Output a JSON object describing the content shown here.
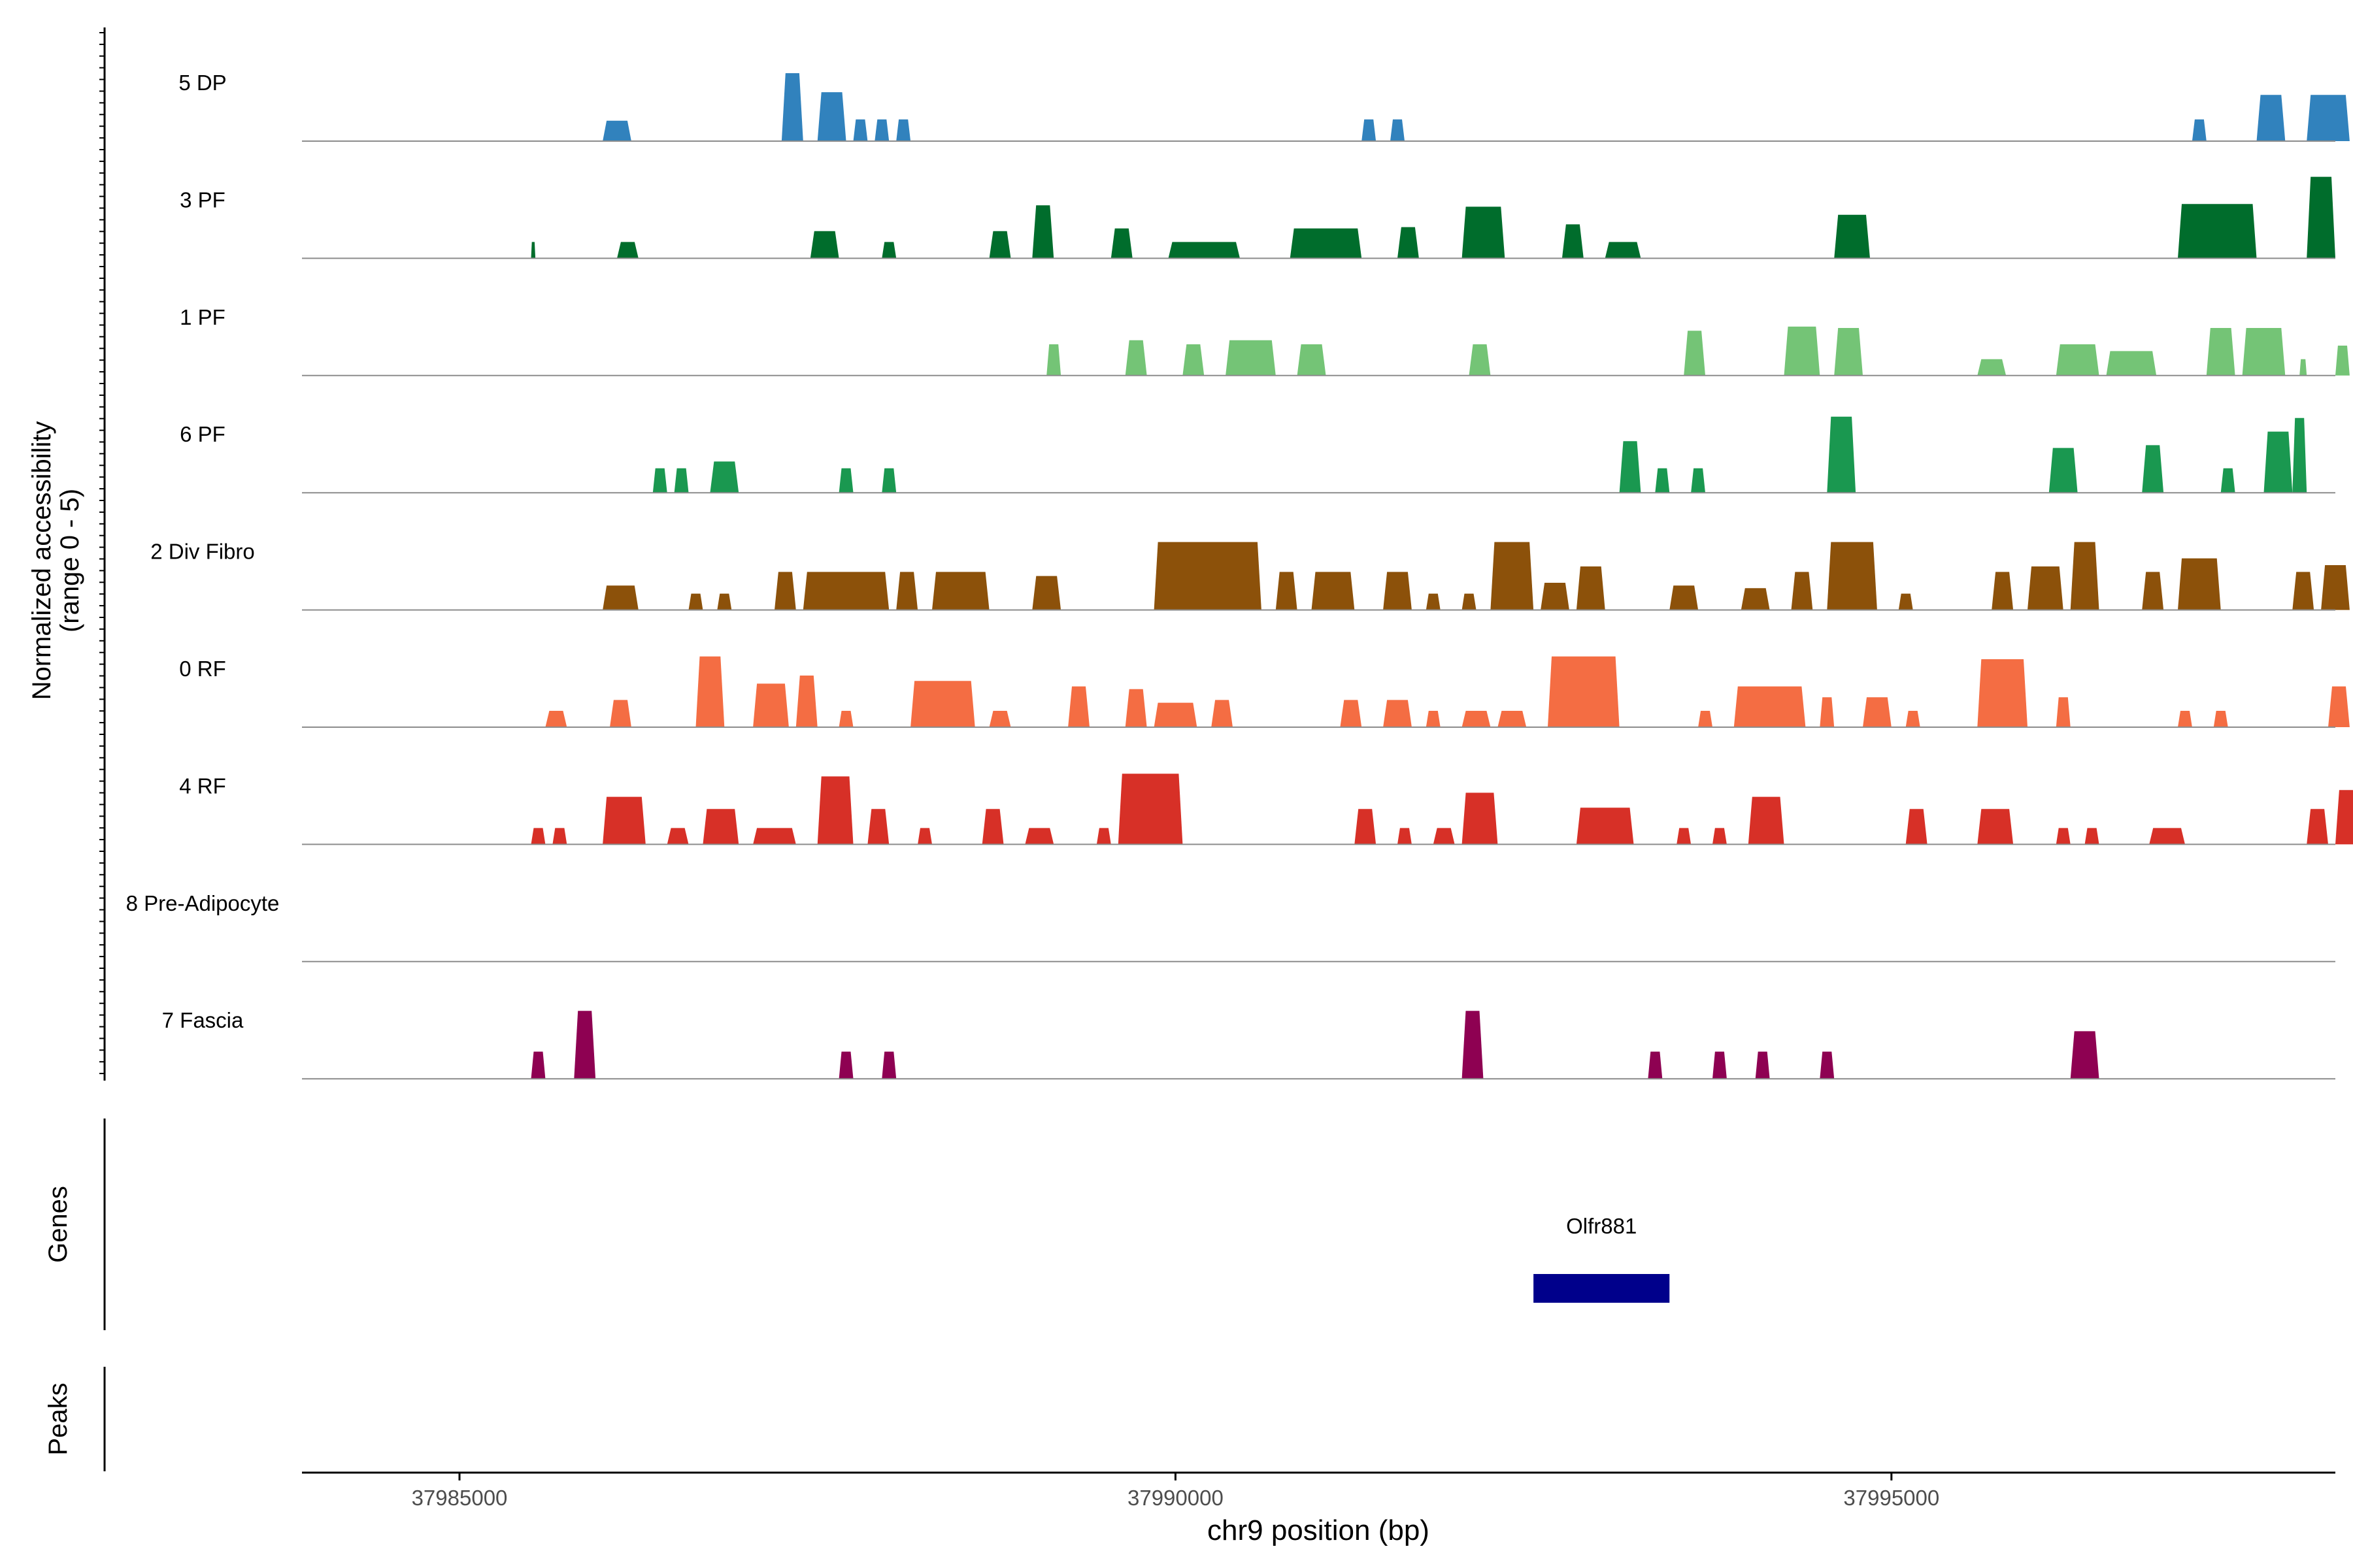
{
  "chart_data": {
    "type": "area",
    "title": "",
    "xlabel": "chr9 position (bp)",
    "ylabel_line1": "Normalized accessibility",
    "ylabel_line2": "(range 0 - 5)",
    "xlim": [
      37983900,
      37998100
    ],
    "ylim": [
      0,
      5
    ],
    "x_ticks": [
      37985000,
      37990000,
      37995000
    ],
    "x_tick_labels": [
      "37985000",
      "37990000",
      "37995000"
    ],
    "series": [
      {
        "name": "5 DP",
        "color": "#3182bd",
        "peaks": [
          [
            37986000,
            37986200,
            1.5
          ],
          [
            37987250,
            37987400,
            5.0
          ],
          [
            37987500,
            37987700,
            3.6
          ],
          [
            37987750,
            37987850,
            1.6
          ],
          [
            37987900,
            37988000,
            1.6
          ],
          [
            37988050,
            37988150,
            1.6
          ],
          [
            37991300,
            37991400,
            1.6
          ],
          [
            37991500,
            37991600,
            1.6
          ],
          [
            37997100,
            37997200,
            1.6
          ],
          [
            37997550,
            37997750,
            3.4
          ],
          [
            37997900,
            37998200,
            3.4
          ]
        ]
      },
      {
        "name": "3 PF",
        "color": "#006d2c",
        "peaks": [
          [
            37985500,
            37985530,
            1.2
          ],
          [
            37986100,
            37986250,
            1.2
          ],
          [
            37987450,
            37987650,
            2.0
          ],
          [
            37987950,
            37988050,
            1.2
          ],
          [
            37988700,
            37988850,
            2.0
          ],
          [
            37989000,
            37989150,
            3.9
          ],
          [
            37989550,
            37989700,
            2.2
          ],
          [
            37989950,
            37990450,
            1.2
          ],
          [
            37990800,
            37991300,
            2.2
          ],
          [
            37991550,
            37991700,
            2.3
          ],
          [
            37992000,
            37992300,
            3.8
          ],
          [
            37992700,
            37992850,
            2.5
          ],
          [
            37993000,
            37993250,
            1.2
          ],
          [
            37994600,
            37994850,
            3.2
          ],
          [
            37997000,
            37997550,
            4.0
          ],
          [
            37997900,
            37998100,
            6.0
          ]
        ]
      },
      {
        "name": "1 PF",
        "color": "#74c476",
        "peaks": [
          [
            37989100,
            37989200,
            2.3
          ],
          [
            37989650,
            37989800,
            2.6
          ],
          [
            37990050,
            37990200,
            2.3
          ],
          [
            37990350,
            37990700,
            2.6
          ],
          [
            37990850,
            37991050,
            2.3
          ],
          [
            37992050,
            37992200,
            2.3
          ],
          [
            37993550,
            37993700,
            3.3
          ],
          [
            37994250,
            37994500,
            3.6
          ],
          [
            37994600,
            37994800,
            3.5
          ],
          [
            37995600,
            37995800,
            1.2
          ],
          [
            37996150,
            37996450,
            2.3
          ],
          [
            37996500,
            37996850,
            1.8
          ],
          [
            37997200,
            37997400,
            3.5
          ],
          [
            37997450,
            37997750,
            3.5
          ],
          [
            37997850,
            37997900,
            1.2
          ],
          [
            37998100,
            37998200,
            2.2
          ]
        ]
      },
      {
        "name": "6 PF",
        "color": "#1a9850",
        "peaks": [
          [
            37986350,
            37986450,
            1.8
          ],
          [
            37986500,
            37986600,
            1.8
          ],
          [
            37986750,
            37986950,
            2.3
          ],
          [
            37987650,
            37987750,
            1.8
          ],
          [
            37987950,
            37988050,
            1.8
          ],
          [
            37993100,
            37993250,
            3.8
          ],
          [
            37993350,
            37993450,
            1.8
          ],
          [
            37993600,
            37993700,
            1.8
          ],
          [
            37994550,
            37994750,
            5.6
          ],
          [
            37996100,
            37996300,
            3.3
          ],
          [
            37996750,
            37996900,
            3.5
          ],
          [
            37997300,
            37997400,
            1.8
          ],
          [
            37997600,
            37997800,
            4.5
          ],
          [
            37997800,
            37997900,
            5.5
          ]
        ]
      },
      {
        "name": "2 Div Fibro",
        "color": "#8c510a",
        "peaks": [
          [
            37986000,
            37986250,
            1.8
          ],
          [
            37986600,
            37986700,
            1.2
          ],
          [
            37986800,
            37986900,
            1.2
          ],
          [
            37987200,
            37987350,
            2.8
          ],
          [
            37987400,
            37988000,
            2.8
          ],
          [
            37988050,
            37988200,
            2.8
          ],
          [
            37988300,
            37988700,
            2.8
          ],
          [
            37989000,
            37989200,
            2.5
          ],
          [
            37989850,
            37990600,
            5.0
          ],
          [
            37990700,
            37990850,
            2.8
          ],
          [
            37990950,
            37991250,
            2.8
          ],
          [
            37991450,
            37991650,
            2.8
          ],
          [
            37991750,
            37991850,
            1.2
          ],
          [
            37992000,
            37992100,
            1.2
          ],
          [
            37992200,
            37992500,
            5.0
          ],
          [
            37992550,
            37992750,
            2.0
          ],
          [
            37992800,
            37993000,
            3.2
          ],
          [
            37993450,
            37993650,
            1.8
          ],
          [
            37993950,
            37994150,
            1.6
          ],
          [
            37994300,
            37994450,
            2.8
          ],
          [
            37994550,
            37994900,
            5.0
          ],
          [
            37995050,
            37995150,
            1.2
          ],
          [
            37995700,
            37995850,
            2.8
          ],
          [
            37995950,
            37996200,
            3.2
          ],
          [
            37996250,
            37996450,
            5.0
          ],
          [
            37996750,
            37996900,
            2.8
          ],
          [
            37997000,
            37997300,
            3.8
          ],
          [
            37997800,
            37997950,
            2.8
          ],
          [
            37998000,
            37998200,
            3.3
          ]
        ]
      },
      {
        "name": "0 RF",
        "color": "#f46d43",
        "peaks": [
          [
            37985600,
            37985750,
            1.2
          ],
          [
            37986050,
            37986200,
            2.0
          ],
          [
            37986650,
            37986850,
            5.2
          ],
          [
            37987050,
            37987300,
            3.2
          ],
          [
            37987350,
            37987500,
            3.8
          ],
          [
            37987650,
            37987750,
            1.2
          ],
          [
            37988150,
            37988600,
            3.4
          ],
          [
            37988700,
            37988850,
            1.2
          ],
          [
            37989250,
            37989400,
            3.0
          ],
          [
            37989650,
            37989800,
            2.8
          ],
          [
            37989850,
            37990150,
            1.8
          ],
          [
            37990250,
            37990400,
            2.0
          ],
          [
            37991150,
            37991300,
            2.0
          ],
          [
            37991450,
            37991650,
            2.0
          ],
          [
            37991750,
            37991850,
            1.2
          ],
          [
            37992000,
            37992200,
            1.2
          ],
          [
            37992250,
            37992450,
            1.2
          ],
          [
            37992600,
            37993100,
            5.2
          ],
          [
            37993650,
            37993750,
            1.2
          ],
          [
            37993900,
            37994400,
            3.0
          ],
          [
            37994500,
            37994600,
            2.2
          ],
          [
            37994800,
            37995000,
            2.2
          ],
          [
            37995100,
            37995200,
            1.2
          ],
          [
            37995600,
            37995950,
            5.0
          ],
          [
            37996150,
            37996250,
            2.2
          ],
          [
            37997000,
            37997100,
            1.2
          ],
          [
            37997250,
            37997350,
            1.2
          ],
          [
            37998050,
            37998200,
            3.0
          ]
        ]
      },
      {
        "name": "4 RF",
        "color": "#d73027",
        "peaks": [
          [
            37985500,
            37985600,
            1.2
          ],
          [
            37985650,
            37985750,
            1.2
          ],
          [
            37986000,
            37986300,
            3.5
          ],
          [
            37986450,
            37986600,
            1.2
          ],
          [
            37986700,
            37986950,
            2.6
          ],
          [
            37987050,
            37987350,
            1.2
          ],
          [
            37987500,
            37987750,
            5.0
          ],
          [
            37987850,
            37988000,
            2.6
          ],
          [
            37988200,
            37988300,
            1.2
          ],
          [
            37988650,
            37988800,
            2.6
          ],
          [
            37988950,
            37989150,
            1.2
          ],
          [
            37989450,
            37989550,
            1.2
          ],
          [
            37989600,
            37990050,
            5.2
          ],
          [
            37991250,
            37991400,
            2.6
          ],
          [
            37991550,
            37991650,
            1.2
          ],
          [
            37991800,
            37991950,
            1.2
          ],
          [
            37992000,
            37992250,
            3.8
          ],
          [
            37992800,
            37993200,
            2.7
          ],
          [
            37993500,
            37993600,
            1.2
          ],
          [
            37993750,
            37993850,
            1.2
          ],
          [
            37994000,
            37994250,
            3.5
          ],
          [
            37995100,
            37995250,
            2.6
          ],
          [
            37995600,
            37995850,
            2.6
          ],
          [
            37996150,
            37996250,
            1.2
          ],
          [
            37996350,
            37996450,
            1.2
          ],
          [
            37996800,
            37997050,
            1.2
          ],
          [
            37997900,
            37998050,
            2.6
          ],
          [
            37998100,
            37998250,
            4.0
          ]
        ]
      },
      {
        "name": "8 Pre-Adipocyte",
        "color": "#4d4d4d",
        "peaks": []
      },
      {
        "name": "7 Fascia",
        "color": "#8e0152",
        "peaks": [
          [
            37985500,
            37985600,
            2.0
          ],
          [
            37985800,
            37985950,
            5.0
          ],
          [
            37987650,
            37987750,
            2.0
          ],
          [
            37987950,
            37988050,
            2.0
          ],
          [
            37992000,
            37992150,
            5.0
          ],
          [
            37993300,
            37993400,
            2.0
          ],
          [
            37993750,
            37993850,
            2.0
          ],
          [
            37994050,
            37994150,
            2.0
          ],
          [
            37994500,
            37994600,
            2.0
          ],
          [
            37996250,
            37996450,
            3.5
          ]
        ]
      }
    ],
    "genes": [
      {
        "name": "Olfr881",
        "start": 37992500,
        "end": 37993450,
        "color": "#00008b"
      }
    ],
    "track_labels": {
      "genes": "Genes",
      "peaks": "Peaks"
    }
  }
}
